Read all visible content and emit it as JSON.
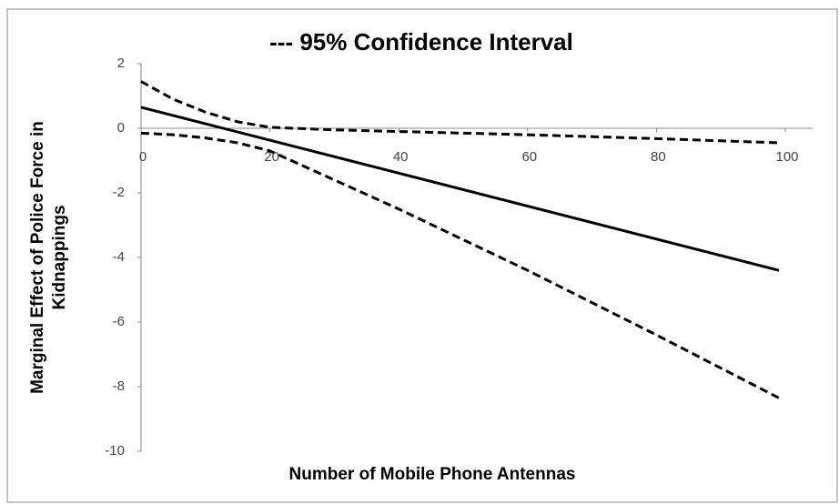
{
  "chart_data": {
    "type": "line",
    "title": "--- 95% Confidence Interval",
    "xlabel": "Number of Mobile Phone Antennas",
    "ylabel": [
      "Marginal Effect of Police Force in",
      "Kidnappings"
    ],
    "xlim": [
      0,
      100
    ],
    "xticks": [
      0,
      20,
      40,
      60,
      80,
      100
    ],
    "ylim": [
      -10,
      2
    ],
    "yticks": [
      2,
      0,
      -2,
      -4,
      -6,
      -8,
      -10
    ],
    "grid": false,
    "series": [
      {
        "color": "#000000",
        "dash": false,
        "x": [
          0,
          99
        ],
        "values": [
          0.65,
          -4.4
        ]
      },
      {
        "color": "#000000",
        "dash": true,
        "x": [
          0,
          5,
          10,
          15,
          20,
          30,
          40,
          60,
          80,
          99
        ],
        "values": [
          1.45,
          0.9,
          0.5,
          0.2,
          0.03,
          -0.05,
          -0.1,
          -0.2,
          -0.32,
          -0.45
        ]
      },
      {
        "color": "#000000",
        "dash": true,
        "x": [
          0,
          5,
          10,
          15,
          20,
          30,
          40,
          60,
          80,
          99
        ],
        "values": [
          -0.15,
          -0.2,
          -0.3,
          -0.45,
          -0.7,
          -1.6,
          -2.5,
          -4.4,
          -6.4,
          -8.35
        ]
      }
    ]
  }
}
